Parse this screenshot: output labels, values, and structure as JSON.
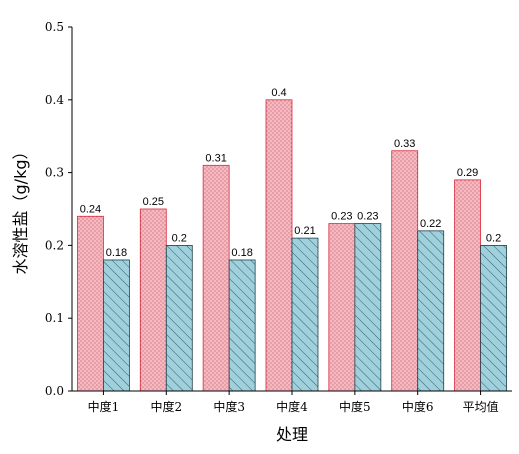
{
  "chart_data": {
    "type": "bar",
    "xlabel": "处理",
    "ylabel": "水溶性盐（g/kg）",
    "ylim": [
      0,
      0.5
    ],
    "yticks": [
      "0.0",
      "0.1",
      "0.2",
      "0.3",
      "0.4",
      "0.5"
    ],
    "categories": [
      "中度1",
      "中度2",
      "中度3",
      "中度4",
      "中度5",
      "中度6",
      "平均值"
    ],
    "series": [
      {
        "values": [
          0.24,
          0.25,
          0.31,
          0.4,
          0.23,
          0.33,
          0.29
        ],
        "labels": [
          "0.24",
          "0.25",
          "0.31",
          "0.4",
          "0.23",
          "0.33",
          "0.29"
        ],
        "color": "#f9b8c0",
        "pattern": "dots"
      },
      {
        "values": [
          0.18,
          0.2,
          0.18,
          0.21,
          0.23,
          0.22,
          0.2
        ],
        "labels": [
          "0.18",
          "0.2",
          "0.18",
          "0.21",
          "0.23",
          "0.22",
          "0.2"
        ],
        "color": "#9fd0dc",
        "pattern": "hatch"
      }
    ],
    "legend": "none",
    "grid": false
  }
}
